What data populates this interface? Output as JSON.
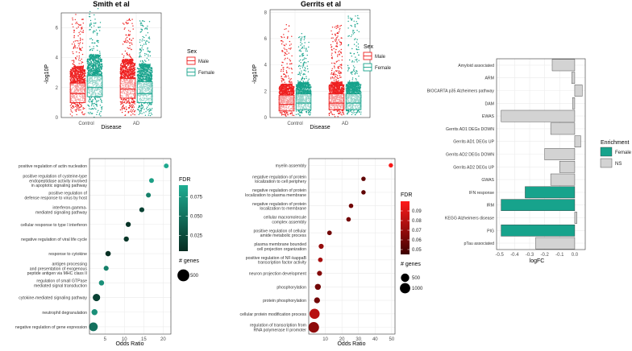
{
  "colors": {
    "male": "#ee2020",
    "female": "#17a38c",
    "grey": "#d3d3d3",
    "dark": "#000000"
  },
  "chart_data": [
    {
      "id": "smith",
      "type": "scatter",
      "title": "Smith et al",
      "xlabel": "Disease",
      "ylabel": "-log10P",
      "categories": [
        "Control",
        "AD"
      ],
      "yticks": [
        0,
        2,
        4,
        6
      ],
      "ylim": [
        0,
        7
      ],
      "legend_title": "Sex",
      "legend": [
        "Male",
        "Female"
      ],
      "series": [
        {
          "name": "Male",
          "boxes": [
            {
              "category": "Control",
              "q1": 1.0,
              "median": 1.6,
              "q3": 2.3,
              "max": 6.9
            },
            {
              "category": "AD",
              "q1": 1.3,
              "median": 1.9,
              "q3": 2.6,
              "max": 6.6
            }
          ]
        },
        {
          "name": "Female",
          "boxes": [
            {
              "category": "Control",
              "q1": 1.4,
              "median": 2.0,
              "q3": 2.8,
              "max": 7.3
            },
            {
              "category": "AD",
              "q1": 1.0,
              "median": 1.6,
              "q3": 2.4,
              "max": 6.5
            }
          ]
        }
      ]
    },
    {
      "id": "gerrits",
      "type": "scatter",
      "title": "Gerrits et al",
      "xlabel": "Disease",
      "ylabel": "-log10P",
      "categories": [
        "Control",
        "AD"
      ],
      "yticks": [
        0,
        2,
        4,
        6,
        8
      ],
      "ylim": [
        0,
        8.2
      ],
      "legend_title": "Sex",
      "legend": [
        "Male",
        "Female"
      ],
      "series": [
        {
          "name": "Male",
          "boxes": [
            {
              "category": "Control",
              "q1": 0.5,
              "median": 1.0,
              "q3": 1.7,
              "max": 7.2
            },
            {
              "category": "AD",
              "q1": 0.6,
              "median": 1.1,
              "q3": 1.8,
              "max": 7.0
            }
          ]
        },
        {
          "name": "Female",
          "boxes": [
            {
              "category": "Control",
              "q1": 0.6,
              "median": 1.1,
              "q3": 1.8,
              "max": 6.4
            },
            {
              "category": "AD",
              "q1": 0.6,
              "median": 1.1,
              "q3": 1.8,
              "max": 7.8
            }
          ]
        }
      ]
    },
    {
      "id": "enrich",
      "type": "bar",
      "orientation": "horizontal",
      "xlabel": "logFC",
      "xlim": [
        -0.52,
        0.07
      ],
      "xticks": [
        -0.5,
        -0.4,
        -0.3,
        -0.2,
        -0.1,
        0.0
      ],
      "xtick_labels": [
        "-0.5",
        "-0.4",
        "-0.3",
        "-0.2",
        "-0.1",
        "0.0"
      ],
      "categories": [
        "Amyloid associated",
        "ARM",
        "BIOCARTA p35 Alzheimers pathway",
        "DAM",
        "EWAS",
        "Gerrits AD1 DEGs DOWN",
        "Gerrits AD1 DEGs UP",
        "Gerrits AD2 DEGs DOWN",
        "Gerrits AD2 DEGs UP",
        "GWAS",
        "IFN response",
        "IRM",
        "KEGG Alzheimers disease",
        "PIG",
        "pTau associated"
      ],
      "values": [
        -0.15,
        -0.02,
        0.05,
        -0.015,
        -0.49,
        -0.16,
        0.04,
        -0.2,
        -0.1,
        -0.16,
        -0.33,
        -0.49,
        0.015,
        -0.49,
        -0.26
      ],
      "groups": [
        "NS",
        "NS",
        "NS",
        "NS",
        "NS",
        "NS",
        "NS",
        "NS",
        "NS",
        "NS",
        "Female",
        "Female",
        "NS",
        "Female",
        "NS"
      ],
      "legend_title": "Enrichment",
      "legend": [
        "Female",
        "NS"
      ]
    },
    {
      "id": "go_left",
      "type": "scatter",
      "xlabel": "Odds Ratio",
      "xlim": [
        1,
        22
      ],
      "xticks": [
        5,
        10,
        15,
        20
      ],
      "terms": [
        "positive regulation of actin nucleation",
        "positive regulation of cysteine-type|endopeptidase activity involved|in apoptotic signaling pathway",
        "positive regulation of|defense response to virus by host",
        "interferon-gamma-|mediated signaling pathway",
        "cellular response to type I interferon",
        "negative regulation of viral life cycle",
        "response to cytokine",
        "antigen processing|and presentation of exogenous|peptide antigen via MHC class II",
        "regulation of small GTPase|mediated signal transduction",
        "cytokine-mediated signaling pathway",
        "neutrophil degranulation",
        "negative regulation of gene expression"
      ],
      "odds_ratio": [
        20.8,
        17.0,
        16.2,
        14.5,
        11.0,
        10.5,
        5.8,
        5.3,
        4.1,
        2.8,
        2.3,
        2.0
      ],
      "fdr": [
        0.086,
        0.08,
        0.06,
        0.02,
        0.01,
        0.012,
        0.008,
        0.06,
        0.07,
        0.02,
        0.07,
        0.05
      ],
      "genes": [
        8,
        9,
        10,
        12,
        14,
        15,
        20,
        12,
        18,
        100,
        40,
        190
      ],
      "fdr_legend_title": "FDR",
      "fdr_ticks": [
        0.025,
        0.05,
        0.075
      ],
      "fdr_tick_labels": [
        "0.025",
        "0.050",
        "0.075"
      ],
      "size_legend_title": "# genes",
      "size_legend": [
        500
      ]
    },
    {
      "id": "go_right",
      "type": "scatter",
      "xlabel": "Odds Ratio",
      "xlim": [
        0,
        52
      ],
      "xticks": [
        10,
        20,
        30,
        40,
        50
      ],
      "terms": [
        "myelin assembly",
        "negative regulation of protein|localization to cell periphery",
        "negative regulation of protein|localization to plasma membrane",
        "negative regulation of protein|localization to membrane",
        "cellular macromolecule|complex assembly",
        "positive regulation of cellular|amide metabolic process",
        "plasma membrane bounded|cell projection organization",
        "positive regulation of NF-kappaB|transcription factor activity",
        "neuron projection development",
        "phosphorylation",
        "protein phosphorylation",
        "cellular protein modification process",
        "regulation of transcription from|RNA polymerase II promoter"
      ],
      "odds_ratio": [
        49.5,
        33.0,
        33.0,
        25.5,
        24.0,
        12.5,
        7.5,
        7.0,
        6.5,
        5.5,
        5.0,
        3.5,
        3.0
      ],
      "fdr": [
        0.098,
        0.055,
        0.055,
        0.06,
        0.06,
        0.06,
        0.07,
        0.075,
        0.065,
        0.06,
        0.06,
        0.08,
        0.068
      ],
      "genes": [
        10,
        12,
        12,
        14,
        16,
        20,
        40,
        20,
        40,
        120,
        110,
        950,
        1100
      ],
      "fdr_legend_title": "FDR",
      "fdr_ticks": [
        0.05,
        0.06,
        0.07,
        0.08,
        0.09
      ],
      "fdr_tick_labels": [
        "0.05",
        "0.06",
        "0.07",
        "0.08",
        "0.09"
      ],
      "size_legend_title": "# genes",
      "size_legend": [
        500,
        1000
      ]
    }
  ]
}
